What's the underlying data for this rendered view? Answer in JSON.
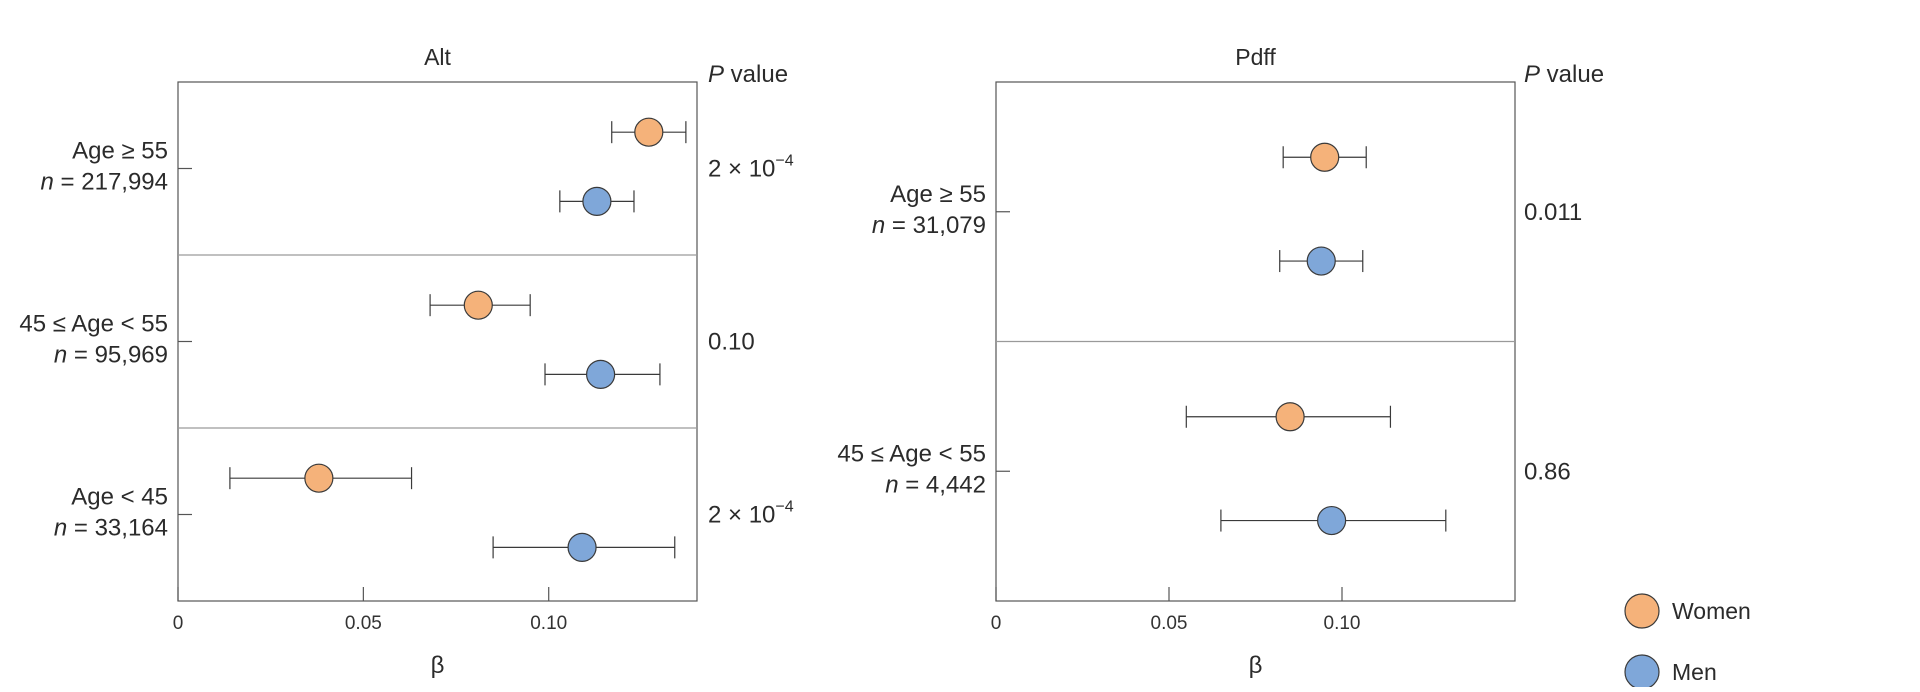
{
  "colors": {
    "women": "#f5b27a",
    "men": "#7fa7d9",
    "stroke": "#3a3a3a",
    "frame": "#555555",
    "divider": "#9a9a9a"
  },
  "pvalue_header": {
    "italic": "P",
    "rest": " value"
  },
  "legend": [
    {
      "label": "Women",
      "color": "#f5b27a"
    },
    {
      "label": "Men",
      "color": "#7fa7d9"
    }
  ],
  "chart_data": [
    {
      "type": "scatter",
      "subtype": "forest-plot",
      "title": "Alt",
      "xlabel": "β",
      "xlim": [
        0,
        0.14
      ],
      "xticks": [
        "0",
        "0.05",
        "0.10"
      ],
      "xtick_values": [
        0,
        0.05,
        0.1
      ],
      "groups": [
        {
          "label": "Age ≥ 55",
          "n_italic": "n",
          "n_rest": " = 217,994",
          "p_mantissa": "2 × 10",
          "p_exp": "−4",
          "women": {
            "beta": 0.127,
            "lo": 0.117,
            "hi": 0.137
          },
          "men": {
            "beta": 0.113,
            "lo": 0.103,
            "hi": 0.123
          }
        },
        {
          "label": "45 ≤ Age < 55",
          "n_italic": "n",
          "n_rest": " = 95,969",
          "p_mantissa": "0.10",
          "p_exp": "",
          "women": {
            "beta": 0.081,
            "lo": 0.068,
            "hi": 0.095
          },
          "men": {
            "beta": 0.114,
            "lo": 0.099,
            "hi": 0.13
          }
        },
        {
          "label": "Age < 45",
          "n_italic": "n",
          "n_rest": " = 33,164",
          "p_mantissa": "2 × 10",
          "p_exp": "−4",
          "women": {
            "beta": 0.038,
            "lo": 0.014,
            "hi": 0.063
          },
          "men": {
            "beta": 0.109,
            "lo": 0.085,
            "hi": 0.134
          }
        }
      ]
    },
    {
      "type": "scatter",
      "subtype": "forest-plot",
      "title": "Pdff",
      "xlabel": "β",
      "xlim": [
        0,
        0.15
      ],
      "xticks": [
        "0",
        "0.05",
        "0.10"
      ],
      "xtick_values": [
        0,
        0.05,
        0.1
      ],
      "groups": [
        {
          "label": "Age ≥ 55",
          "n_italic": "n",
          "n_rest": " = 31,079",
          "p_mantissa": "0.011",
          "p_exp": "",
          "women": {
            "beta": 0.095,
            "lo": 0.083,
            "hi": 0.107
          },
          "men": {
            "beta": 0.094,
            "lo": 0.082,
            "hi": 0.106
          }
        },
        {
          "label": "45 ≤ Age < 55",
          "n_italic": "n",
          "n_rest": " = 4,442",
          "p_mantissa": "0.86",
          "p_exp": "",
          "women": {
            "beta": 0.085,
            "lo": 0.055,
            "hi": 0.114
          },
          "men": {
            "beta": 0.097,
            "lo": 0.065,
            "hi": 0.13
          }
        }
      ]
    }
  ]
}
